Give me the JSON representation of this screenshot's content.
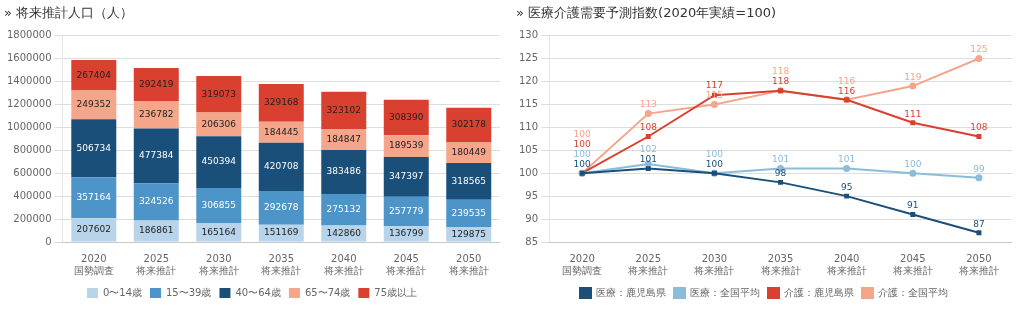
{
  "chart_data": [
    {
      "type": "bar",
      "title": "» 将来推計人口（人）",
      "categories": [
        "2020\n国勢調査",
        "2025\n将来推計",
        "2030\n将来推計",
        "2035\n将来推計",
        "2040\n将来推計",
        "2045\n将来推計",
        "2050\n将来推計"
      ],
      "series": [
        {
          "name": "0〜14歳",
          "color": "#b8d4ea",
          "values": [
            207602,
            186861,
            165164,
            151169,
            142860,
            136799,
            129875
          ]
        },
        {
          "name": "15〜39歳",
          "color": "#4d94c8",
          "values": [
            357164,
            324526,
            306855,
            292678,
            275132,
            257779,
            239535
          ]
        },
        {
          "name": "40〜64歳",
          "color": "#1a4f7a",
          "values": [
            506734,
            477384,
            450394,
            420708,
            383486,
            347397,
            318565
          ]
        },
        {
          "name": "65〜74歳",
          "color": "#f4a58a",
          "values": [
            249352,
            236782,
            206306,
            184445,
            184847,
            189539,
            180449
          ]
        },
        {
          "name": "75歳以上",
          "color": "#d94030",
          "values": [
            267404,
            292419,
            319073,
            329168,
            323102,
            308390,
            302178
          ]
        }
      ],
      "ylim": [
        0,
        1800000
      ],
      "yticks": [
        0,
        200000,
        400000,
        600000,
        800000,
        1000000,
        1200000,
        1400000,
        1600000,
        1800000
      ],
      "stacked": true,
      "grid": true,
      "legend": "bottom",
      "data_labels": true
    },
    {
      "type": "line",
      "title": "» 医療介護需要予測指数(2020年実績=100)",
      "categories": [
        "2020\n国勢調査",
        "2025\n将来推計",
        "2030\n将来推計",
        "2035\n将来推計",
        "2040\n将来推計",
        "2045\n将来推計",
        "2050\n将来推計"
      ],
      "series": [
        {
          "name": "医療：鹿児島県",
          "color": "#1a4f7a",
          "marker": "square",
          "values": [
            100,
            101,
            100,
            98,
            95,
            91,
            87
          ]
        },
        {
          "name": "医療：全国平均",
          "color": "#8bbcda",
          "marker": "circle",
          "values": [
            100,
            102,
            100,
            101,
            101,
            100,
            99
          ]
        },
        {
          "name": "介護：鹿児島県",
          "color": "#d94030",
          "marker": "square",
          "values": [
            100,
            108,
            117,
            118,
            116,
            111,
            108
          ]
        },
        {
          "name": "介護：全国平均",
          "color": "#f4a58a",
          "marker": "circle",
          "values": [
            100,
            113,
            115,
            118,
            116,
            119,
            125
          ]
        }
      ],
      "ylim": [
        85,
        130
      ],
      "yticks": [
        85,
        90,
        95,
        100,
        105,
        110,
        115,
        120,
        125,
        130
      ],
      "grid": true,
      "legend": "bottom",
      "data_labels": true
    }
  ]
}
